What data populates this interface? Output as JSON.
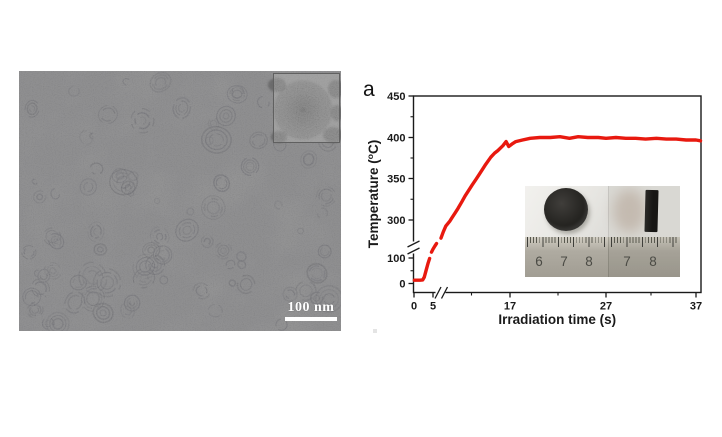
{
  "page": {
    "background": "#ffffff"
  },
  "tem_panel": {
    "description": "TEM micrograph of onion-like carbon nanoparticles",
    "scale_bar_label": "100 nm",
    "base_color": "#7c7c7c",
    "ring_color": "#43434a",
    "inset": {
      "description": "magnified view of a single onion-like carbon nanoparticle with concentric graphitic shells"
    }
  },
  "chart_panel": {
    "panel_label": "a",
    "inset_photo": {
      "description": "photographs of the black pellet sample, top view and side view, on a steel ruler",
      "ruler_numbers_left": [
        "6",
        "7",
        "8"
      ],
      "ruler_numbers_right": [
        "7",
        "8"
      ]
    }
  },
  "chart_data": {
    "type": "line",
    "title": "",
    "xlabel": "Irradiation time (s)",
    "ylabel": "Temperature (°C)",
    "ylabel_parts": {
      "prefix": "Temperature (",
      "sup": "o",
      "suffix": "C)"
    },
    "x_ticks": [
      0,
      5,
      17,
      27,
      37
    ],
    "x_minor_ticks": [
      11,
      22,
      32
    ],
    "y_ticks": [
      0,
      100,
      300,
      350,
      400,
      450
    ],
    "y_minor_ticks": [
      50,
      325,
      375,
      425
    ],
    "xlim": [
      0,
      37.5
    ],
    "ylim": [
      0,
      450
    ],
    "x_axis_break_after_tick": 5,
    "y_axis_break_between": [
      100,
      300
    ],
    "grid": false,
    "legend": false,
    "line_color": "#e8190f",
    "series": [
      {
        "name": "sample temperature under irradiation",
        "color": "#e8190f",
        "segments": [
          [
            [
              0.1,
              13
            ],
            [
              0.8,
              13
            ],
            [
              1.6,
              13
            ],
            [
              2.3,
              14
            ],
            [
              2.7,
              25
            ],
            [
              3.2,
              53
            ],
            [
              3.7,
              80
            ],
            [
              4.1,
              98
            ]
          ],
          [
            [
              4.6,
              131
            ],
            [
              5.0,
              147
            ],
            [
              5.3,
              163
            ],
            [
              5.55,
              176
            ]
          ],
          [
            [
              6.25,
              205
            ],
            [
              6.6,
              238
            ],
            [
              7.0,
              268
            ],
            [
              7.65,
              295
            ],
            [
              7.9,
              302
            ],
            [
              8.4,
              308
            ],
            [
              8.9,
              314
            ],
            [
              9.5,
              322
            ],
            [
              10.0,
              329
            ],
            [
              10.6,
              336
            ],
            [
              11.1,
              342
            ],
            [
              11.7,
              349
            ],
            [
              12.2,
              355
            ],
            [
              13.1,
              366
            ],
            [
              14.0,
              376
            ],
            [
              14.6,
              381
            ],
            [
              15.1,
              384
            ],
            [
              15.9,
              390
            ],
            [
              16.4,
              395
            ],
            [
              16.8,
              389
            ],
            [
              17.2,
              392
            ],
            [
              17.6,
              395
            ],
            [
              18.3,
              397
            ],
            [
              19.1,
              399
            ],
            [
              20.1,
              400
            ],
            [
              21.2,
              400
            ],
            [
              22.2,
              401
            ],
            [
              23.2,
              399
            ],
            [
              24.1,
              401
            ],
            [
              25.1,
              400
            ],
            [
              26.2,
              400
            ],
            [
              27.0,
              399
            ],
            [
              28.1,
              400
            ],
            [
              29.2,
              399
            ],
            [
              30.3,
              399
            ],
            [
              31.4,
              398
            ],
            [
              32.6,
              399
            ],
            [
              33.7,
              398
            ],
            [
              34.8,
              398
            ],
            [
              35.9,
              397
            ],
            [
              37.0,
              397
            ],
            [
              37.5,
              396
            ]
          ]
        ]
      }
    ]
  }
}
